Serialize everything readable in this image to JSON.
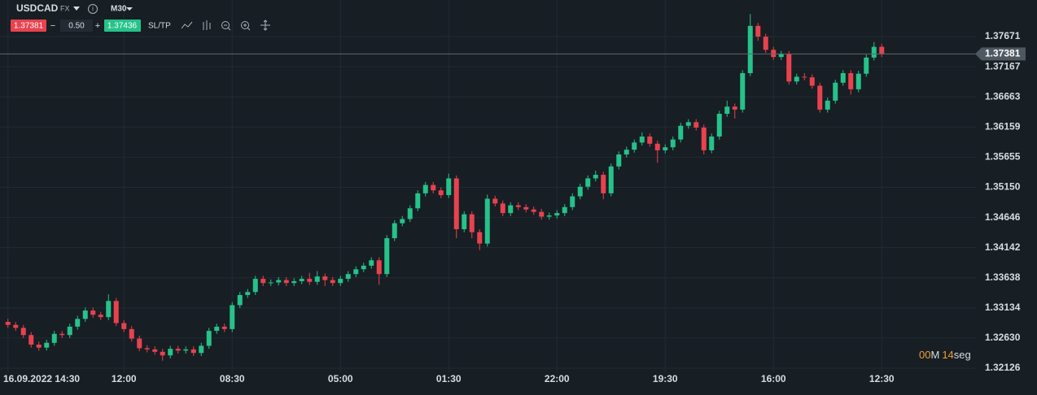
{
  "toolbar": {
    "symbol": "USDCAD",
    "market": "FX",
    "timeframe": "M30",
    "bid": "1.37381",
    "spread": "0.50",
    "ask": "1.37436",
    "sl_tp": "SL/TP"
  },
  "timer": {
    "minutes": "00",
    "minutes_unit": "M",
    "seconds": "14",
    "seconds_unit": "seg"
  },
  "chart_data": {
    "type": "candlestick",
    "categories": [
      "16.09.2022 14:30",
      null,
      null,
      null,
      null,
      null,
      null,
      null,
      null,
      null,
      null,
      null,
      null,
      null,
      null,
      "12:00",
      null,
      null,
      null,
      null,
      null,
      null,
      null,
      null,
      null,
      null,
      null,
      null,
      null,
      "08:30",
      null,
      null,
      null,
      null,
      null,
      null,
      null,
      null,
      null,
      null,
      null,
      null,
      null,
      "05:00",
      null,
      null,
      null,
      null,
      null,
      null,
      null,
      null,
      null,
      null,
      null,
      null,
      null,
      "01:30",
      null,
      null,
      null,
      null,
      null,
      null,
      null,
      null,
      null,
      null,
      null,
      null,
      null,
      "22:00",
      null,
      null,
      null,
      null,
      null,
      null,
      null,
      null,
      null,
      null,
      null,
      null,
      null,
      "19:30",
      null,
      null,
      null,
      null,
      null,
      null,
      null,
      null,
      null,
      null,
      null,
      null,
      null,
      "16:00",
      null,
      null,
      null,
      null,
      null,
      null,
      null,
      null,
      null,
      null,
      null,
      null,
      null,
      "12:30"
    ],
    "open": [
      1.329,
      1.3285,
      1.328,
      1.3268,
      1.3252,
      1.3247,
      1.3255,
      1.327,
      1.3268,
      1.3282,
      1.3295,
      1.3309,
      1.3302,
      1.3298,
      1.3325,
      1.3288,
      1.3278,
      1.3262,
      1.3246,
      1.3244,
      1.324,
      1.3234,
      1.3245,
      1.3242,
      1.3244,
      1.3238,
      1.325,
      1.3275,
      1.3282,
      1.3278,
      1.3318,
      1.3335,
      1.334,
      1.3362,
      1.3355,
      1.3356,
      1.336,
      1.3355,
      1.3358,
      1.3362,
      1.3357,
      1.3366,
      1.336,
      1.3355,
      1.3362,
      1.337,
      1.3378,
      1.3384,
      1.3393,
      1.337,
      1.343,
      1.3455,
      1.3462,
      1.348,
      1.3505,
      1.3519,
      1.351,
      1.3502,
      1.353,
      1.3445,
      1.347,
      1.344,
      1.3421,
      1.3496,
      1.3488,
      1.3472,
      1.3485,
      1.3482,
      1.3478,
      1.3474,
      1.3466,
      1.3468,
      1.3472,
      1.3482,
      1.35,
      1.3516,
      1.353,
      1.3536,
      1.3505,
      1.355,
      1.357,
      1.3578,
      1.359,
      1.36,
      1.3588,
      1.3577,
      1.3582,
      1.3595,
      1.3618,
      1.3624,
      1.3615,
      1.3577,
      1.36,
      1.3638,
      1.365,
      1.3645,
      1.3706,
      1.3785,
      1.3767,
      1.3745,
      1.3733,
      1.3738,
      1.3692,
      1.37,
      1.3699,
      1.3685,
      1.3645,
      1.366,
      1.369,
      1.3706,
      1.3679,
      1.3705,
      1.3732,
      1.375
    ],
    "high": [
      1.3295,
      1.329,
      1.3285,
      1.3273,
      1.3257,
      1.326,
      1.3275,
      1.3275,
      1.3287,
      1.33,
      1.3314,
      1.3314,
      1.3307,
      1.3336,
      1.333,
      1.3293,
      1.3283,
      1.3267,
      1.3251,
      1.3249,
      1.3245,
      1.325,
      1.325,
      1.3249,
      1.3249,
      1.3255,
      1.328,
      1.3287,
      1.3287,
      1.3323,
      1.334,
      1.3345,
      1.3367,
      1.3367,
      1.3361,
      1.3365,
      1.3365,
      1.3363,
      1.3367,
      1.3372,
      1.3375,
      1.3371,
      1.3365,
      1.3367,
      1.3375,
      1.3383,
      1.3389,
      1.3398,
      1.3398,
      1.3435,
      1.346,
      1.3467,
      1.3485,
      1.351,
      1.3524,
      1.3524,
      1.3515,
      1.3538,
      1.3535,
      1.3475,
      1.3475,
      1.3445,
      1.3503,
      1.3501,
      1.3493,
      1.349,
      1.349,
      1.3487,
      1.3483,
      1.3479,
      1.3473,
      1.3477,
      1.3487,
      1.3505,
      1.3521,
      1.3535,
      1.3543,
      1.3541,
      1.3555,
      1.3575,
      1.3583,
      1.3595,
      1.3607,
      1.3605,
      1.3593,
      1.3587,
      1.36,
      1.3623,
      1.3629,
      1.3629,
      1.362,
      1.3605,
      1.3643,
      1.366,
      1.3655,
      1.3711,
      1.3805,
      1.379,
      1.3772,
      1.375,
      1.3743,
      1.3743,
      1.3705,
      1.3706,
      1.3704,
      1.369,
      1.3665,
      1.3695,
      1.3711,
      1.3711,
      1.371,
      1.3737,
      1.3758,
      1.3755
    ],
    "low": [
      1.328,
      1.3275,
      1.3263,
      1.3247,
      1.3242,
      1.3242,
      1.325,
      1.3263,
      1.3263,
      1.3277,
      1.329,
      1.3297,
      1.3293,
      1.3293,
      1.3283,
      1.3273,
      1.3257,
      1.3241,
      1.3239,
      1.3235,
      1.3225,
      1.3229,
      1.3237,
      1.3237,
      1.3233,
      1.3233,
      1.3245,
      1.327,
      1.3273,
      1.3273,
      1.3313,
      1.333,
      1.3335,
      1.335,
      1.335,
      1.3351,
      1.335,
      1.335,
      1.3353,
      1.3352,
      1.3352,
      1.335,
      1.335,
      1.335,
      1.3357,
      1.3365,
      1.3373,
      1.3379,
      1.3352,
      1.3365,
      1.3425,
      1.345,
      1.3457,
      1.3475,
      1.35,
      1.3505,
      1.3497,
      1.3497,
      1.343,
      1.344,
      1.343,
      1.341,
      1.3416,
      1.3483,
      1.3467,
      1.3467,
      1.3477,
      1.3473,
      1.3469,
      1.3461,
      1.3461,
      1.3463,
      1.3467,
      1.3477,
      1.3495,
      1.3511,
      1.3525,
      1.3495,
      1.35,
      1.3545,
      1.3565,
      1.3573,
      1.3585,
      1.3583,
      1.3556,
      1.3572,
      1.3577,
      1.359,
      1.3613,
      1.361,
      1.357,
      1.3572,
      1.3595,
      1.3633,
      1.363,
      1.364,
      1.3701,
      1.376,
      1.374,
      1.3728,
      1.3728,
      1.3687,
      1.3687,
      1.3694,
      1.368,
      1.364,
      1.364,
      1.3655,
      1.3685,
      1.367,
      1.3674,
      1.37,
      1.3727,
      1.3733
    ],
    "close": [
      1.3285,
      1.328,
      1.3268,
      1.3252,
      1.3247,
      1.3255,
      1.327,
      1.3268,
      1.3282,
      1.3295,
      1.3309,
      1.3302,
      1.3298,
      1.3325,
      1.3288,
      1.3278,
      1.3262,
      1.3246,
      1.3244,
      1.324,
      1.3234,
      1.3245,
      1.3242,
      1.3244,
      1.3238,
      1.325,
      1.3275,
      1.3282,
      1.3278,
      1.3318,
      1.3335,
      1.334,
      1.3362,
      1.3355,
      1.3356,
      1.336,
      1.3355,
      1.3358,
      1.3362,
      1.3357,
      1.3366,
      1.336,
      1.3355,
      1.3362,
      1.337,
      1.3378,
      1.3384,
      1.3393,
      1.337,
      1.343,
      1.3455,
      1.3462,
      1.348,
      1.3505,
      1.3519,
      1.351,
      1.3502,
      1.353,
      1.3445,
      1.347,
      1.344,
      1.3421,
      1.3496,
      1.3488,
      1.3472,
      1.3485,
      1.3482,
      1.3478,
      1.3474,
      1.3466,
      1.3468,
      1.3472,
      1.3482,
      1.35,
      1.3516,
      1.353,
      1.3536,
      1.3505,
      1.355,
      1.357,
      1.3578,
      1.359,
      1.36,
      1.3588,
      1.3577,
      1.3582,
      1.3595,
      1.3618,
      1.3624,
      1.3615,
      1.3577,
      1.36,
      1.3638,
      1.365,
      1.3645,
      1.3706,
      1.3785,
      1.3767,
      1.3745,
      1.3733,
      1.3738,
      1.3692,
      1.37,
      1.3699,
      1.3685,
      1.3645,
      1.366,
      1.369,
      1.3706,
      1.3679,
      1.3705,
      1.3732,
      1.375,
      1.37381
    ],
    "up_color": "#26c28a",
    "down_color": "#e8424f",
    "last_price": 1.37381,
    "ylim": [
      1.32058,
      1.38283
    ],
    "yticks": [
      1.37671,
      1.37167,
      1.36663,
      1.36159,
      1.35655,
      {
        "value": 1.3515,
        "label": "1.35150"
      },
      1.34646,
      1.34142,
      1.33638,
      1.33134,
      {
        "value": 1.3263,
        "label": "1.32630"
      },
      1.32126
    ],
    "grid": true
  }
}
